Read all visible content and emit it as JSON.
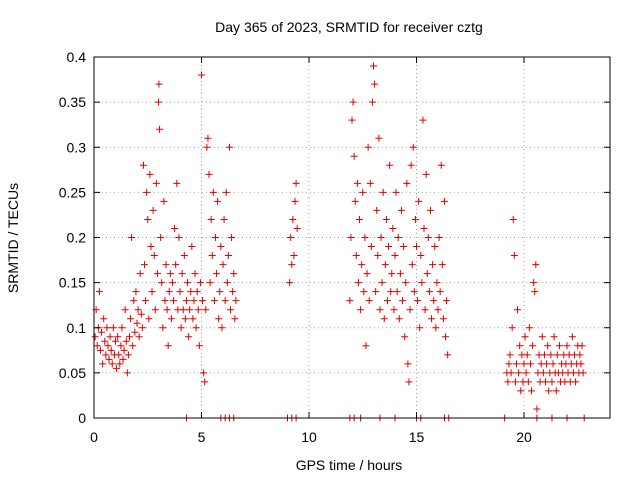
{
  "chart_data": {
    "type": "scatter",
    "title": "Day 365 of 2023, SRMTID for receiver cztg",
    "xlabel": "GPS time / hours",
    "ylabel": "SRMTID / TECUs",
    "xlim": [
      0,
      24
    ],
    "ylim": [
      0,
      0.4
    ],
    "xticks": [
      0,
      5,
      10,
      15,
      20
    ],
    "xtick_labels": [
      "0",
      "5",
      "10",
      "15",
      "20"
    ],
    "yticks": [
      0,
      0.05,
      0.1,
      0.15,
      0.2,
      0.25,
      0.3,
      0.35,
      0.4
    ],
    "ytick_labels": [
      "0",
      "0.05",
      "0.1",
      "0.15",
      "0.2",
      "0.25",
      "0.3",
      "0.35",
      "0.4"
    ],
    "grid": true,
    "marker": "+",
    "marker_color": "#e00000",
    "series": [
      {
        "name": "SRMTID",
        "points": [
          [
            0.05,
            0.09
          ],
          [
            0.1,
            0.12
          ],
          [
            0.15,
            0.08
          ],
          [
            0.2,
            0.1
          ],
          [
            0.25,
            0.14
          ],
          [
            0.3,
            0.075
          ],
          [
            0.35,
            0.095
          ],
          [
            0.4,
            0.06
          ],
          [
            0.45,
            0.11
          ],
          [
            0.5,
            0.085
          ],
          [
            0.55,
            0.07
          ],
          [
            0.6,
            0.1
          ],
          [
            0.65,
            0.08
          ],
          [
            0.7,
            0.065
          ],
          [
            0.75,
            0.09
          ],
          [
            0.8,
            0.075
          ],
          [
            0.85,
            0.06
          ],
          [
            0.9,
            0.1
          ],
          [
            0.95,
            0.07
          ],
          [
            1.0,
            0.085
          ],
          [
            1.05,
            0.055
          ],
          [
            1.1,
            0.09
          ],
          [
            1.15,
            0.07
          ],
          [
            1.2,
            0.06
          ],
          [
            1.25,
            0.08
          ],
          [
            1.3,
            0.1
          ],
          [
            1.35,
            0.065
          ],
          [
            1.4,
            0.075
          ],
          [
            1.45,
            0.12
          ],
          [
            1.5,
            0.085
          ],
          [
            1.55,
            0.05
          ],
          [
            1.6,
            0.07
          ],
          [
            1.65,
            0.09
          ],
          [
            1.7,
            0.11
          ],
          [
            1.75,
            0.2
          ],
          [
            1.8,
            0.08
          ],
          [
            1.85,
            0.13
          ],
          [
            1.9,
            0.095
          ],
          [
            1.95,
            0.14
          ],
          [
            2.0,
            0.105
          ],
          [
            2.05,
            0.12
          ],
          [
            2.1,
            0.09
          ],
          [
            2.15,
            0.16
          ],
          [
            2.2,
            0.115
          ],
          [
            2.25,
            0.1
          ],
          [
            2.3,
            0.28
          ],
          [
            2.35,
            0.17
          ],
          [
            2.4,
            0.13
          ],
          [
            2.45,
            0.25
          ],
          [
            2.5,
            0.22
          ],
          [
            2.55,
            0.11
          ],
          [
            2.6,
            0.27
          ],
          [
            2.65,
            0.19
          ],
          [
            2.7,
            0.14
          ],
          [
            2.75,
            0.23
          ],
          [
            2.8,
            0.18
          ],
          [
            2.85,
            0.12
          ],
          [
            2.9,
            0.26
          ],
          [
            2.95,
            0.16
          ],
          [
            3.0,
            0.35
          ],
          [
            3.02,
            0.37
          ],
          [
            3.05,
            0.32
          ],
          [
            3.1,
            0.2
          ],
          [
            3.15,
            0.15
          ],
          [
            3.2,
            0.1
          ],
          [
            3.25,
            0.24
          ],
          [
            3.3,
            0.13
          ],
          [
            3.35,
            0.17
          ],
          [
            3.4,
            0.12
          ],
          [
            3.45,
            0.08
          ],
          [
            3.5,
            0.14
          ],
          [
            3.55,
            0.16
          ],
          [
            3.6,
            0.11
          ],
          [
            3.65,
            0.15
          ],
          [
            3.7,
            0.13
          ],
          [
            3.75,
            0.21
          ],
          [
            3.8,
            0.17
          ],
          [
            3.85,
            0.26
          ],
          [
            3.9,
            0.12
          ],
          [
            3.95,
            0.2
          ],
          [
            4.0,
            0.14
          ],
          [
            4.05,
            0.1
          ],
          [
            4.1,
            0.16
          ],
          [
            4.15,
            0.12
          ],
          [
            4.2,
            0.18
          ],
          [
            4.25,
            0.11
          ],
          [
            4.3,
            0.13
          ],
          [
            4.35,
            0.15
          ],
          [
            4.4,
            0.09
          ],
          [
            4.45,
            0.12
          ],
          [
            4.5,
            0.14
          ],
          [
            4.55,
            0.19
          ],
          [
            4.6,
            0.11
          ],
          [
            4.65,
            0.13
          ],
          [
            4.7,
            0.16
          ],
          [
            4.75,
            0.1
          ],
          [
            4.8,
            0.14
          ],
          [
            4.85,
            0.12
          ],
          [
            4.9,
            0.08
          ],
          [
            4.95,
            0.15
          ],
          [
            5.0,
            0.38
          ],
          [
            5.05,
            0.13
          ],
          [
            5.1,
            0.05
          ],
          [
            5.15,
            0.04
          ],
          [
            5.2,
            0.12
          ],
          [
            5.25,
            0.3
          ],
          [
            5.3,
            0.31
          ],
          [
            5.35,
            0.27
          ],
          [
            5.4,
            0.15
          ],
          [
            5.45,
            0.22
          ],
          [
            5.5,
            0.18
          ],
          [
            5.55,
            0.25
          ],
          [
            5.6,
            0.13
          ],
          [
            5.65,
            0.2
          ],
          [
            5.7,
            0.16
          ],
          [
            5.75,
            0.24
          ],
          [
            5.8,
            0.11
          ],
          [
            5.85,
            0.14
          ],
          [
            5.9,
            0.19
          ],
          [
            5.95,
            0.1
          ],
          [
            6.0,
            0.17
          ],
          [
            6.05,
            0.22
          ],
          [
            6.1,
            0.13
          ],
          [
            6.15,
            0.25
          ],
          [
            6.2,
            0.15
          ],
          [
            6.25,
            0.18
          ],
          [
            6.3,
            0.3
          ],
          [
            6.35,
            0.12
          ],
          [
            6.4,
            0.2
          ],
          [
            6.45,
            0.14
          ],
          [
            6.5,
            0.16
          ],
          [
            6.55,
            0.11
          ],
          [
            6.6,
            0.13
          ],
          [
            9.1,
            0.15
          ],
          [
            9.15,
            0.2
          ],
          [
            9.2,
            0.17
          ],
          [
            9.25,
            0.22
          ],
          [
            9.3,
            0.18
          ],
          [
            9.35,
            0.24
          ],
          [
            9.4,
            0.26
          ],
          [
            9.45,
            0.21
          ],
          [
            11.9,
            0.13
          ],
          [
            11.95,
            0.2
          ],
          [
            12.0,
            0.33
          ],
          [
            12.05,
            0.35
          ],
          [
            12.1,
            0.29
          ],
          [
            12.15,
            0.24
          ],
          [
            12.2,
            0.18
          ],
          [
            12.25,
            0.26
          ],
          [
            12.3,
            0.15
          ],
          [
            12.35,
            0.22
          ],
          [
            12.4,
            0.12
          ],
          [
            12.45,
            0.17
          ],
          [
            12.5,
            0.25
          ],
          [
            12.55,
            0.14
          ],
          [
            12.6,
            0.2
          ],
          [
            12.65,
            0.08
          ],
          [
            12.7,
            0.16
          ],
          [
            12.75,
            0.3
          ],
          [
            12.8,
            0.13
          ],
          [
            12.85,
            0.26
          ],
          [
            12.9,
            0.19
          ],
          [
            12.95,
            0.35
          ],
          [
            13.0,
            0.39
          ],
          [
            13.05,
            0.37
          ],
          [
            13.1,
            0.14
          ],
          [
            13.15,
            0.23
          ],
          [
            13.2,
            0.18
          ],
          [
            13.25,
            0.31
          ],
          [
            13.3,
            0.12
          ],
          [
            13.35,
            0.2
          ],
          [
            13.4,
            0.15
          ],
          [
            13.45,
            0.25
          ],
          [
            13.5,
            0.11
          ],
          [
            13.55,
            0.17
          ],
          [
            13.6,
            0.22
          ],
          [
            13.65,
            0.13
          ],
          [
            13.7,
            0.19
          ],
          [
            13.75,
            0.28
          ],
          [
            13.8,
            0.14
          ],
          [
            13.85,
            0.16
          ],
          [
            13.9,
            0.21
          ],
          [
            13.95,
            0.12
          ],
          [
            14.0,
            0.18
          ],
          [
            14.05,
            0.25
          ],
          [
            14.1,
            0.14
          ],
          [
            14.15,
            0.2
          ],
          [
            14.2,
            0.11
          ],
          [
            14.25,
            0.16
          ],
          [
            14.3,
            0.23
          ],
          [
            14.35,
            0.13
          ],
          [
            14.4,
            0.19
          ],
          [
            14.45,
            0.09
          ],
          [
            14.5,
            0.15
          ],
          [
            14.55,
            0.26
          ],
          [
            14.6,
            0.06
          ],
          [
            14.65,
            0.04
          ],
          [
            14.7,
            0.12
          ],
          [
            14.75,
            0.28
          ],
          [
            14.8,
            0.17
          ],
          [
            14.85,
            0.3
          ],
          [
            14.9,
            0.14
          ],
          [
            14.95,
            0.22
          ],
          [
            15.0,
            0.19
          ],
          [
            15.05,
            0.13
          ],
          [
            15.1,
            0.24
          ],
          [
            15.15,
            0.1
          ],
          [
            15.2,
            0.18
          ],
          [
            15.25,
            0.15
          ],
          [
            15.3,
            0.33
          ],
          [
            15.35,
            0.21
          ],
          [
            15.4,
            0.12
          ],
          [
            15.45,
            0.27
          ],
          [
            15.5,
            0.16
          ],
          [
            15.55,
            0.2
          ],
          [
            15.6,
            0.14
          ],
          [
            15.65,
            0.23
          ],
          [
            15.7,
            0.11
          ],
          [
            15.75,
            0.17
          ],
          [
            15.8,
            0.13
          ],
          [
            15.85,
            0.19
          ],
          [
            15.9,
            0.1
          ],
          [
            15.95,
            0.15
          ],
          [
            16.0,
            0.12
          ],
          [
            16.05,
            0.2
          ],
          [
            16.1,
            0.14
          ],
          [
            16.15,
            0.28
          ],
          [
            16.2,
            0.17
          ],
          [
            16.25,
            0.11
          ],
          [
            16.3,
            0.24
          ],
          [
            16.35,
            0.09
          ],
          [
            16.4,
            0.13
          ],
          [
            16.45,
            0.07
          ],
          [
            19.2,
            0.05
          ],
          [
            19.25,
            0.04
          ],
          [
            19.3,
            0.06
          ],
          [
            19.35,
            0.07
          ],
          [
            19.4,
            0.05
          ],
          [
            19.45,
            0.1
          ],
          [
            19.5,
            0.22
          ],
          [
            19.55,
            0.18
          ],
          [
            19.6,
            0.04
          ],
          [
            19.65,
            0.06
          ],
          [
            19.7,
            0.12
          ],
          [
            19.75,
            0.05
          ],
          [
            19.8,
            0.08
          ],
          [
            19.85,
            0.03
          ],
          [
            19.9,
            0.07
          ],
          [
            19.95,
            0.04
          ],
          [
            20.0,
            0.06
          ],
          [
            20.05,
            0.09
          ],
          [
            20.1,
            0.05
          ],
          [
            20.15,
            0.07
          ],
          [
            20.2,
            0.04
          ],
          [
            20.25,
            0.1
          ],
          [
            20.3,
            0.06
          ],
          [
            20.35,
            0.03
          ],
          [
            20.4,
            0.08
          ],
          [
            20.45,
            0.15
          ],
          [
            20.5,
            0.14
          ],
          [
            20.55,
            0.17
          ],
          [
            20.6,
            0.01
          ],
          [
            20.65,
            0.05
          ],
          [
            20.7,
            0.07
          ],
          [
            20.75,
            0.04
          ],
          [
            20.8,
            0.06
          ],
          [
            20.85,
            0.09
          ],
          [
            20.9,
            0.05
          ],
          [
            20.95,
            0.07
          ],
          [
            21.0,
            0.04
          ],
          [
            21.05,
            0.06
          ],
          [
            21.1,
            0.08
          ],
          [
            21.15,
            0.03
          ],
          [
            21.2,
            0.05
          ],
          [
            21.25,
            0.07
          ],
          [
            21.3,
            0.04
          ],
          [
            21.35,
            0.06
          ],
          [
            21.4,
            0.09
          ],
          [
            21.45,
            0.05
          ],
          [
            21.5,
            0.03
          ],
          [
            21.55,
            0.07
          ],
          [
            21.6,
            0.05
          ],
          [
            21.65,
            0.08
          ],
          [
            21.7,
            0.04
          ],
          [
            21.75,
            0.06
          ],
          [
            21.8,
            0.05
          ],
          [
            21.85,
            0.07
          ],
          [
            21.9,
            0.04
          ],
          [
            21.95,
            0.06
          ],
          [
            22.0,
            0.08
          ],
          [
            22.05,
            0.05
          ],
          [
            22.1,
            0.07
          ],
          [
            22.15,
            0.04
          ],
          [
            22.2,
            0.06
          ],
          [
            22.25,
            0.09
          ],
          [
            22.3,
            0.05
          ],
          [
            22.35,
            0.07
          ],
          [
            22.4,
            0.04
          ],
          [
            22.45,
            0.06
          ],
          [
            22.5,
            0.08
          ],
          [
            22.55,
            0.05
          ],
          [
            22.6,
            0.07
          ],
          [
            22.65,
            0.06
          ],
          [
            22.7,
            0.08
          ],
          [
            22.75,
            0.05
          ]
        ]
      }
    ],
    "zero_points_x": [
      4.3,
      5.9,
      6.1,
      6.3,
      6.5,
      9.0,
      9.2,
      9.4,
      11.9,
      12.1,
      12.4,
      13.3,
      14.0,
      15.0,
      15.2,
      16.3,
      16.5,
      19.1,
      20.6,
      21.3,
      22.0,
      22.8
    ]
  }
}
